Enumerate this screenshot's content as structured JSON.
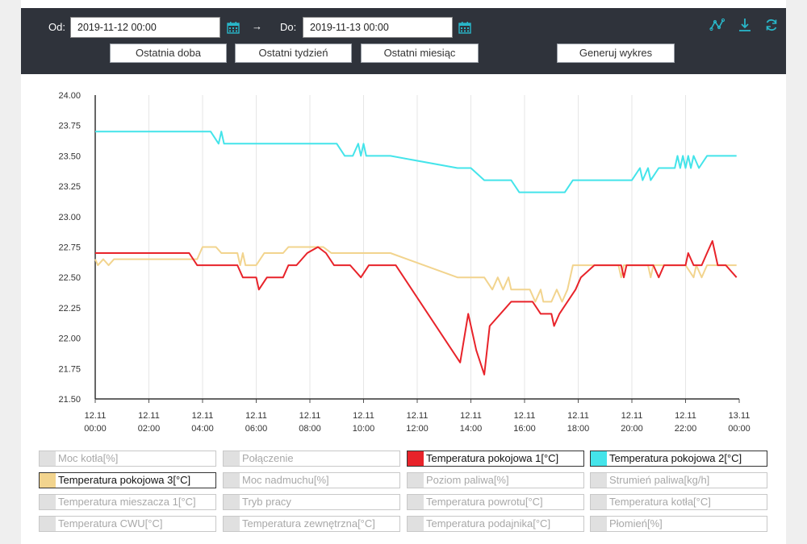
{
  "toolbar": {
    "from_label": "Od:",
    "from_value": "2019-11-12 00:00",
    "arrow": "→",
    "to_label": "Do:",
    "to_value": "2019-11-13 00:00",
    "btn_day": "Ostatnia doba",
    "btn_week": "Ostatni tydzień",
    "btn_month": "Ostatni miesiąc",
    "btn_generate": "Generuj wykres",
    "icons": [
      "line-chart-icon",
      "download-icon",
      "refresh-icon"
    ],
    "accent": "#29b6c8"
  },
  "chart_data": {
    "type": "line",
    "ylim": [
      21.5,
      24.0
    ],
    "yticks": [
      "24.00",
      "23.75",
      "23.50",
      "23.25",
      "23.00",
      "22.75",
      "22.50",
      "22.25",
      "22.00",
      "21.75",
      "21.50"
    ],
    "xticks": [
      {
        "date": "12.11",
        "time": "00:00"
      },
      {
        "date": "12.11",
        "time": "02:00"
      },
      {
        "date": "12.11",
        "time": "04:00"
      },
      {
        "date": "12.11",
        "time": "06:00"
      },
      {
        "date": "12.11",
        "time": "08:00"
      },
      {
        "date": "12.11",
        "time": "10:00"
      },
      {
        "date": "12.11",
        "time": "12:00"
      },
      {
        "date": "12.11",
        "time": "14:00"
      },
      {
        "date": "12.11",
        "time": "16:00"
      },
      {
        "date": "12.11",
        "time": "18:00"
      },
      {
        "date": "12.11",
        "time": "20:00"
      },
      {
        "date": "12.11",
        "time": "22:00"
      },
      {
        "date": "13.11",
        "time": "00:00"
      }
    ],
    "x_unit": "hours",
    "series": [
      {
        "name": "Temperatura pokojowa 2[°C]",
        "color": "#44e4ea",
        "points": [
          [
            0,
            23.7
          ],
          [
            4.3,
            23.7
          ],
          [
            4.6,
            23.6
          ],
          [
            4.7,
            23.7
          ],
          [
            4.8,
            23.6
          ],
          [
            9,
            23.6
          ],
          [
            9.3,
            23.5
          ],
          [
            9.6,
            23.5
          ],
          [
            9.8,
            23.6
          ],
          [
            9.9,
            23.5
          ],
          [
            10,
            23.6
          ],
          [
            10.1,
            23.5
          ],
          [
            11,
            23.5
          ],
          [
            13.5,
            23.4
          ],
          [
            14,
            23.4
          ],
          [
            14.5,
            23.3
          ],
          [
            15.5,
            23.3
          ],
          [
            15.8,
            23.2
          ],
          [
            17.5,
            23.2
          ],
          [
            17.8,
            23.3
          ],
          [
            20,
            23.3
          ],
          [
            20.3,
            23.4
          ],
          [
            20.4,
            23.3
          ],
          [
            20.6,
            23.4
          ],
          [
            20.7,
            23.3
          ],
          [
            21,
            23.4
          ],
          [
            21.6,
            23.4
          ],
          [
            21.7,
            23.5
          ],
          [
            21.8,
            23.4
          ],
          [
            21.9,
            23.5
          ],
          [
            22,
            23.4
          ],
          [
            22.1,
            23.5
          ],
          [
            22.2,
            23.4
          ],
          [
            22.3,
            23.5
          ],
          [
            22.5,
            23.4
          ],
          [
            22.8,
            23.5
          ],
          [
            23.9,
            23.5
          ]
        ]
      },
      {
        "name": "Temperatura pokojowa 3[°C]",
        "color": "#f2d48e",
        "points": [
          [
            0,
            22.65
          ],
          [
            0.1,
            22.6
          ],
          [
            0.3,
            22.65
          ],
          [
            0.5,
            22.6
          ],
          [
            0.7,
            22.65
          ],
          [
            3.8,
            22.65
          ],
          [
            4,
            22.75
          ],
          [
            4.5,
            22.75
          ],
          [
            4.7,
            22.7
          ],
          [
            5.3,
            22.7
          ],
          [
            5.4,
            22.6
          ],
          [
            5.5,
            22.7
          ],
          [
            5.6,
            22.6
          ],
          [
            6,
            22.6
          ],
          [
            6.3,
            22.7
          ],
          [
            7,
            22.7
          ],
          [
            7.2,
            22.75
          ],
          [
            8.5,
            22.75
          ],
          [
            8.8,
            22.7
          ],
          [
            11,
            22.7
          ],
          [
            13.5,
            22.5
          ],
          [
            14.5,
            22.5
          ],
          [
            14.8,
            22.4
          ],
          [
            15,
            22.5
          ],
          [
            15.2,
            22.4
          ],
          [
            15.4,
            22.5
          ],
          [
            15.5,
            22.4
          ],
          [
            16.2,
            22.4
          ],
          [
            16.4,
            22.3
          ],
          [
            16.6,
            22.4
          ],
          [
            16.7,
            22.3
          ],
          [
            17,
            22.3
          ],
          [
            17.2,
            22.4
          ],
          [
            17.4,
            22.3
          ],
          [
            17.6,
            22.4
          ],
          [
            17.8,
            22.6
          ],
          [
            19.5,
            22.6
          ],
          [
            19.6,
            22.5
          ],
          [
            19.7,
            22.6
          ],
          [
            20.6,
            22.6
          ],
          [
            20.7,
            22.5
          ],
          [
            20.8,
            22.6
          ],
          [
            22,
            22.6
          ],
          [
            22.3,
            22.5
          ],
          [
            22.4,
            22.6
          ],
          [
            22.6,
            22.5
          ],
          [
            22.8,
            22.6
          ],
          [
            23.9,
            22.6
          ]
        ]
      },
      {
        "name": "Temperatura pokojowa 1[°C]",
        "color": "#e8232a",
        "points": [
          [
            0,
            22.7
          ],
          [
            3.5,
            22.7
          ],
          [
            3.8,
            22.6
          ],
          [
            5.3,
            22.6
          ],
          [
            5.5,
            22.5
          ],
          [
            6,
            22.5
          ],
          [
            6.1,
            22.4
          ],
          [
            6.4,
            22.5
          ],
          [
            7,
            22.5
          ],
          [
            7.2,
            22.6
          ],
          [
            7.5,
            22.6
          ],
          [
            7.9,
            22.7
          ],
          [
            8.3,
            22.75
          ],
          [
            8.6,
            22.7
          ],
          [
            8.9,
            22.6
          ],
          [
            9.5,
            22.6
          ],
          [
            9.9,
            22.5
          ],
          [
            10.2,
            22.6
          ],
          [
            11.2,
            22.6
          ],
          [
            13.6,
            21.8
          ],
          [
            13.9,
            22.2
          ],
          [
            14.2,
            21.9
          ],
          [
            14.5,
            21.7
          ],
          [
            14.7,
            22.1
          ],
          [
            15.5,
            22.3
          ],
          [
            16.3,
            22.3
          ],
          [
            16.6,
            22.2
          ],
          [
            17,
            22.2
          ],
          [
            17.1,
            22.1
          ],
          [
            17.3,
            22.2
          ],
          [
            17.9,
            22.4
          ],
          [
            18.1,
            22.5
          ],
          [
            18.6,
            22.6
          ],
          [
            19.6,
            22.6
          ],
          [
            19.7,
            22.5
          ],
          [
            19.8,
            22.6
          ],
          [
            20.8,
            22.6
          ],
          [
            21,
            22.5
          ],
          [
            21.2,
            22.6
          ],
          [
            22,
            22.6
          ],
          [
            22.1,
            22.7
          ],
          [
            22.3,
            22.6
          ],
          [
            22.6,
            22.6
          ],
          [
            22.8,
            22.7
          ],
          [
            23,
            22.8
          ],
          [
            23.2,
            22.6
          ],
          [
            23.5,
            22.6
          ],
          [
            23.9,
            22.5
          ]
        ]
      }
    ]
  },
  "legend": [
    {
      "label": "Moc kotła[%]",
      "active": false,
      "color": "#e0e0e0"
    },
    {
      "label": "Połączenie",
      "active": false,
      "color": "#e0e0e0"
    },
    {
      "label": "Temperatura pokojowa 1[°C]",
      "active": true,
      "color": "#e8232a"
    },
    {
      "label": "Temperatura pokojowa 2[°C]",
      "active": true,
      "color": "#44e4ea"
    },
    {
      "label": "Temperatura pokojowa 3[°C]",
      "active": true,
      "color": "#f2d48e"
    },
    {
      "label": "Moc nadmuchu[%]",
      "active": false,
      "color": "#e0e0e0"
    },
    {
      "label": "Poziom paliwa[%]",
      "active": false,
      "color": "#e0e0e0"
    },
    {
      "label": "Strumień paliwa[kg/h]",
      "active": false,
      "color": "#e0e0e0"
    },
    {
      "label": "Temperatura mieszacza 1[°C]",
      "active": false,
      "color": "#e0e0e0"
    },
    {
      "label": "Tryb pracy",
      "active": false,
      "color": "#e0e0e0"
    },
    {
      "label": "Temperatura powrotu[°C]",
      "active": false,
      "color": "#e0e0e0"
    },
    {
      "label": "Temperatura kotła[°C]",
      "active": false,
      "color": "#e0e0e0"
    },
    {
      "label": "Temperatura CWU[°C]",
      "active": false,
      "color": "#e0e0e0"
    },
    {
      "label": "Temperatura zewnętrzna[°C]",
      "active": false,
      "color": "#e0e0e0"
    },
    {
      "label": "Temperatura podajnika[°C]",
      "active": false,
      "color": "#e0e0e0"
    },
    {
      "label": "Płomień[%]",
      "active": false,
      "color": "#e0e0e0"
    }
  ]
}
